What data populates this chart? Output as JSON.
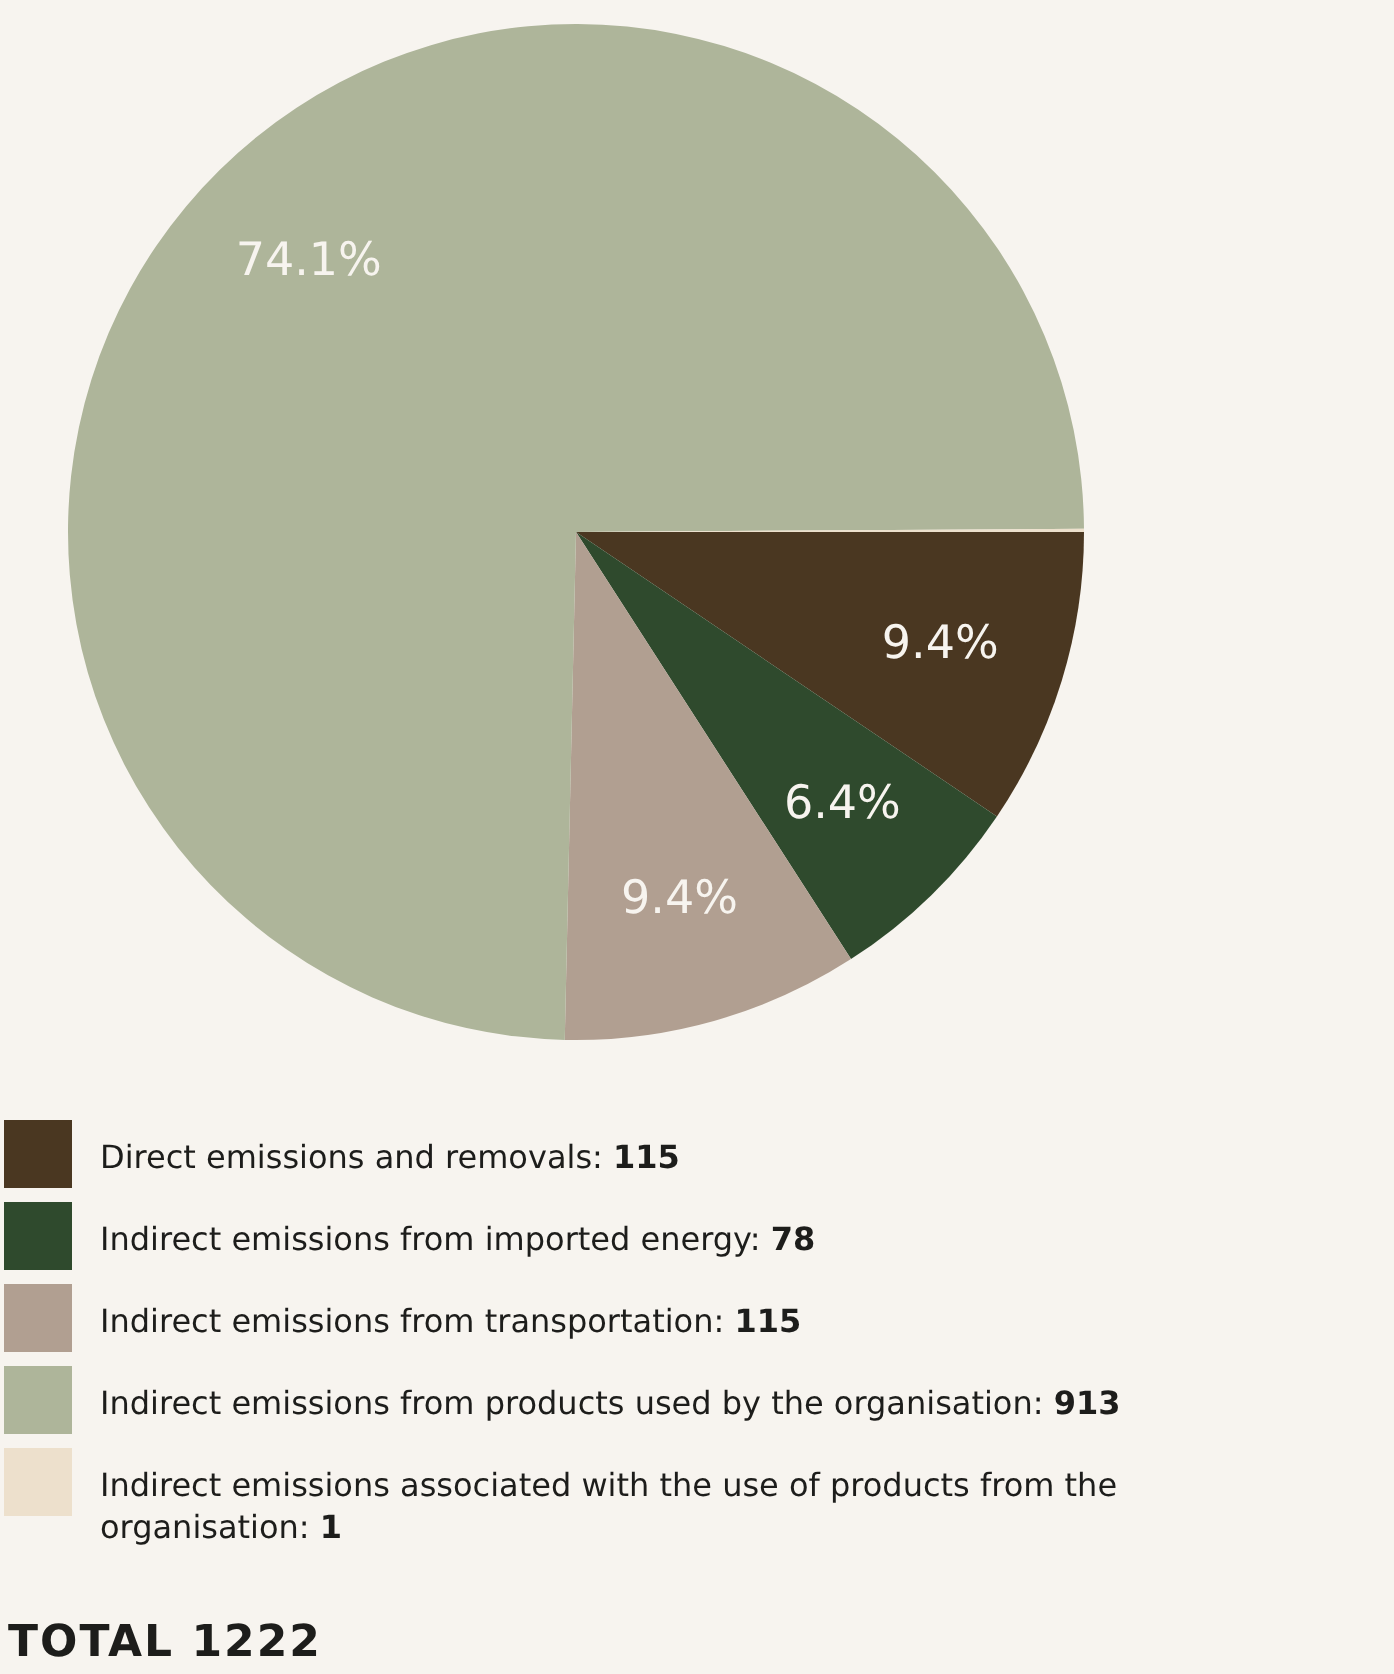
{
  "chart_data": {
    "type": "pie",
    "categories": [
      "Direct emissions and removals: 115",
      "Indirect emissions from imported energy: 78",
      "Indirect emissions from transportation: 115",
      "Indirect emissions from products used by the organisation: 913",
      "Indirect emissions associated with the use of products from the organisation: 1"
    ],
    "values": [
      9.4,
      6.4,
      9.4,
      74.1,
      0.1
    ],
    "colors": [
      "#4a3721",
      "#2f4a2d",
      "#b19f91",
      "#aeb59a",
      "#ede0cc"
    ],
    "value_labels": [
      "9.4%",
      "6.4%",
      "9.4%",
      "74.1%",
      null
    ],
    "legend": "bottom",
    "annotations": [
      "TOTAL 1222"
    ]
  }
}
